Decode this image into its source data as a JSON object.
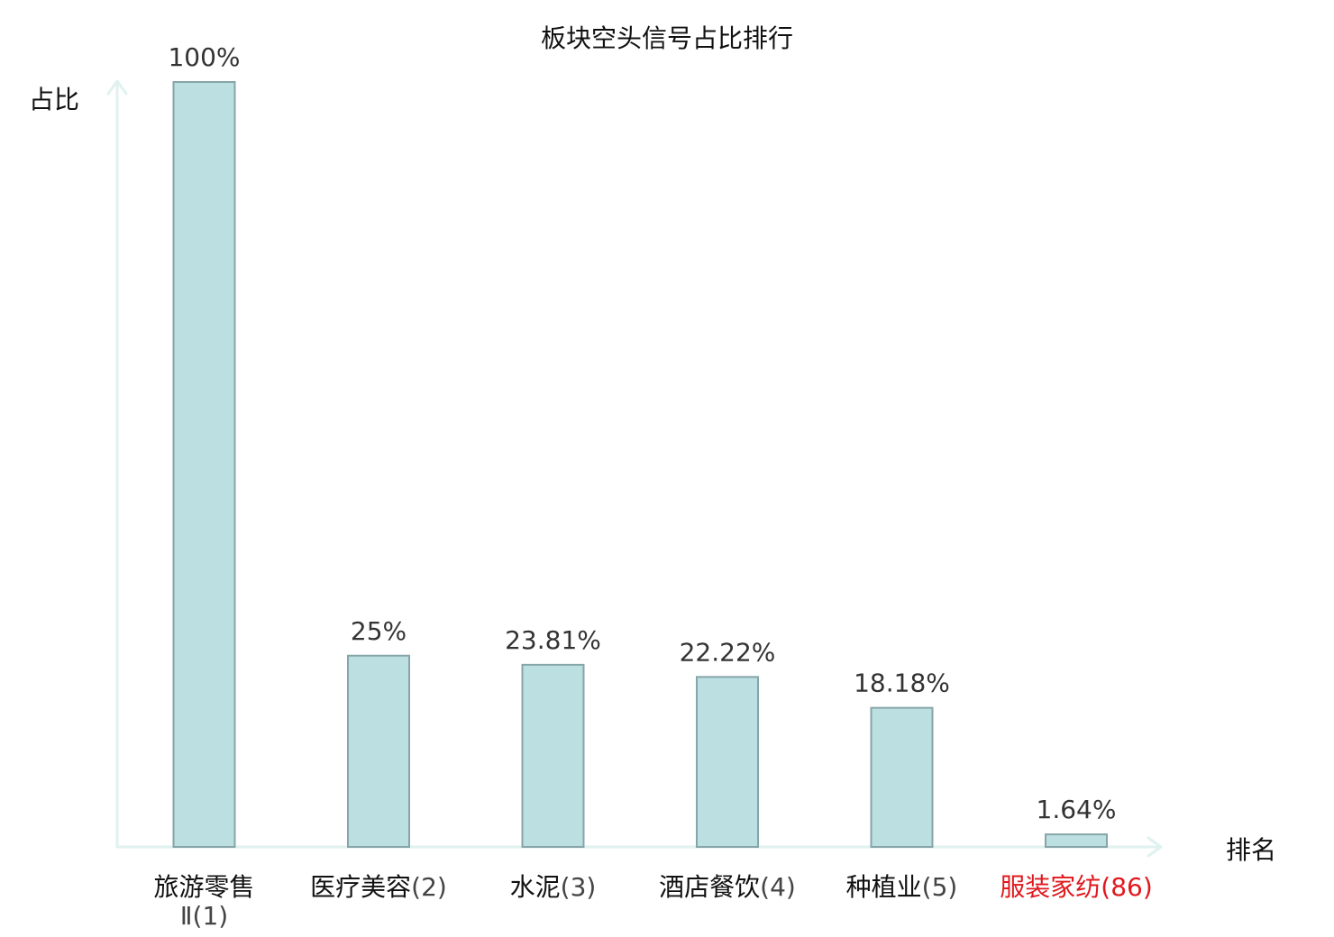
{
  "chart_data": {
    "type": "bar",
    "title": "板块空头信号占比排行",
    "ylabel": "占比",
    "xlabel": "排名",
    "categories": [
      {
        "name": "旅游零售Ⅱ",
        "rank": "(1)",
        "highlight": false
      },
      {
        "name": "医疗美容",
        "rank": "(2)",
        "highlight": false
      },
      {
        "name": "水泥",
        "rank": "(3)",
        "highlight": false
      },
      {
        "name": "酒店餐饮",
        "rank": "(4)",
        "highlight": false
      },
      {
        "name": "种植业",
        "rank": "(5)",
        "highlight": false
      },
      {
        "name": "服装家纺",
        "rank": "(86)",
        "highlight": true
      }
    ],
    "values": [
      100,
      25,
      23.81,
      22.22,
      18.18,
      1.64
    ],
    "value_labels": [
      "100%",
      "25%",
      "23.81%",
      "22.22%",
      "18.18%",
      "1.64%"
    ],
    "ylim": [
      0,
      100
    ],
    "grid": false,
    "colors": {
      "bar_fill": "#bce0e2",
      "bar_stroke": "#86a5a8",
      "axis": "#e0f2ef",
      "highlight_text": "#e0191e",
      "name_text": "#111111",
      "rank_text": "#444444"
    }
  }
}
